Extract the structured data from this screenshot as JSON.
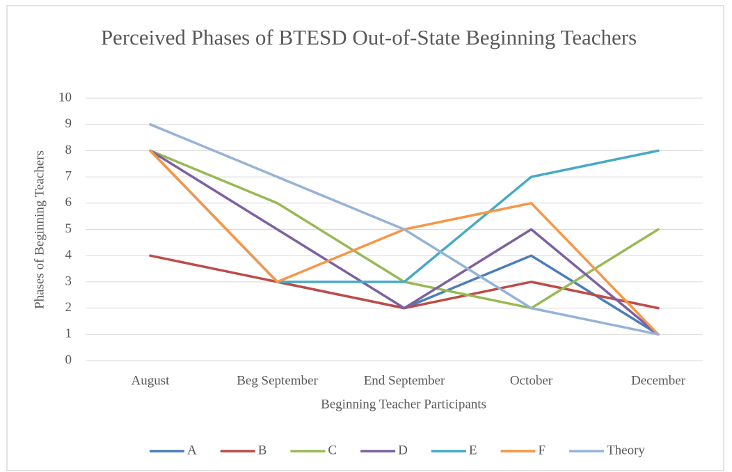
{
  "chart_data": {
    "type": "line",
    "title": "Perceived Phases of BTESD Out-of-State Beginning Teachers",
    "xlabel": "Beginning Teacher Participants",
    "ylabel": "Phases of Beginning Teachers",
    "categories": [
      "August",
      "Beg September",
      "End September",
      "October",
      "December"
    ],
    "series": [
      {
        "name": "A",
        "color": "#4a7ebb",
        "values": [
          8,
          3,
          2,
          4,
          1
        ]
      },
      {
        "name": "B",
        "color": "#be4b48",
        "values": [
          4,
          3,
          2,
          3,
          2
        ]
      },
      {
        "name": "C",
        "color": "#98b954",
        "values": [
          8,
          6,
          3,
          2,
          5
        ]
      },
      {
        "name": "D",
        "color": "#7d60a0",
        "values": [
          8,
          5,
          2,
          5,
          1
        ]
      },
      {
        "name": "E",
        "color": "#46aac5",
        "values": [
          8,
          3,
          3,
          7,
          8
        ]
      },
      {
        "name": "F",
        "color": "#f79646",
        "values": [
          8,
          3,
          5,
          6,
          1
        ]
      },
      {
        "name": "Theory",
        "color": "#95b3d7",
        "values": [
          9,
          7,
          5,
          2,
          1
        ]
      }
    ],
    "ylim": [
      0,
      10
    ],
    "yticks": [
      0,
      1,
      2,
      3,
      4,
      5,
      6,
      7,
      8,
      9,
      10
    ],
    "grid": true,
    "legend": "bottom"
  }
}
